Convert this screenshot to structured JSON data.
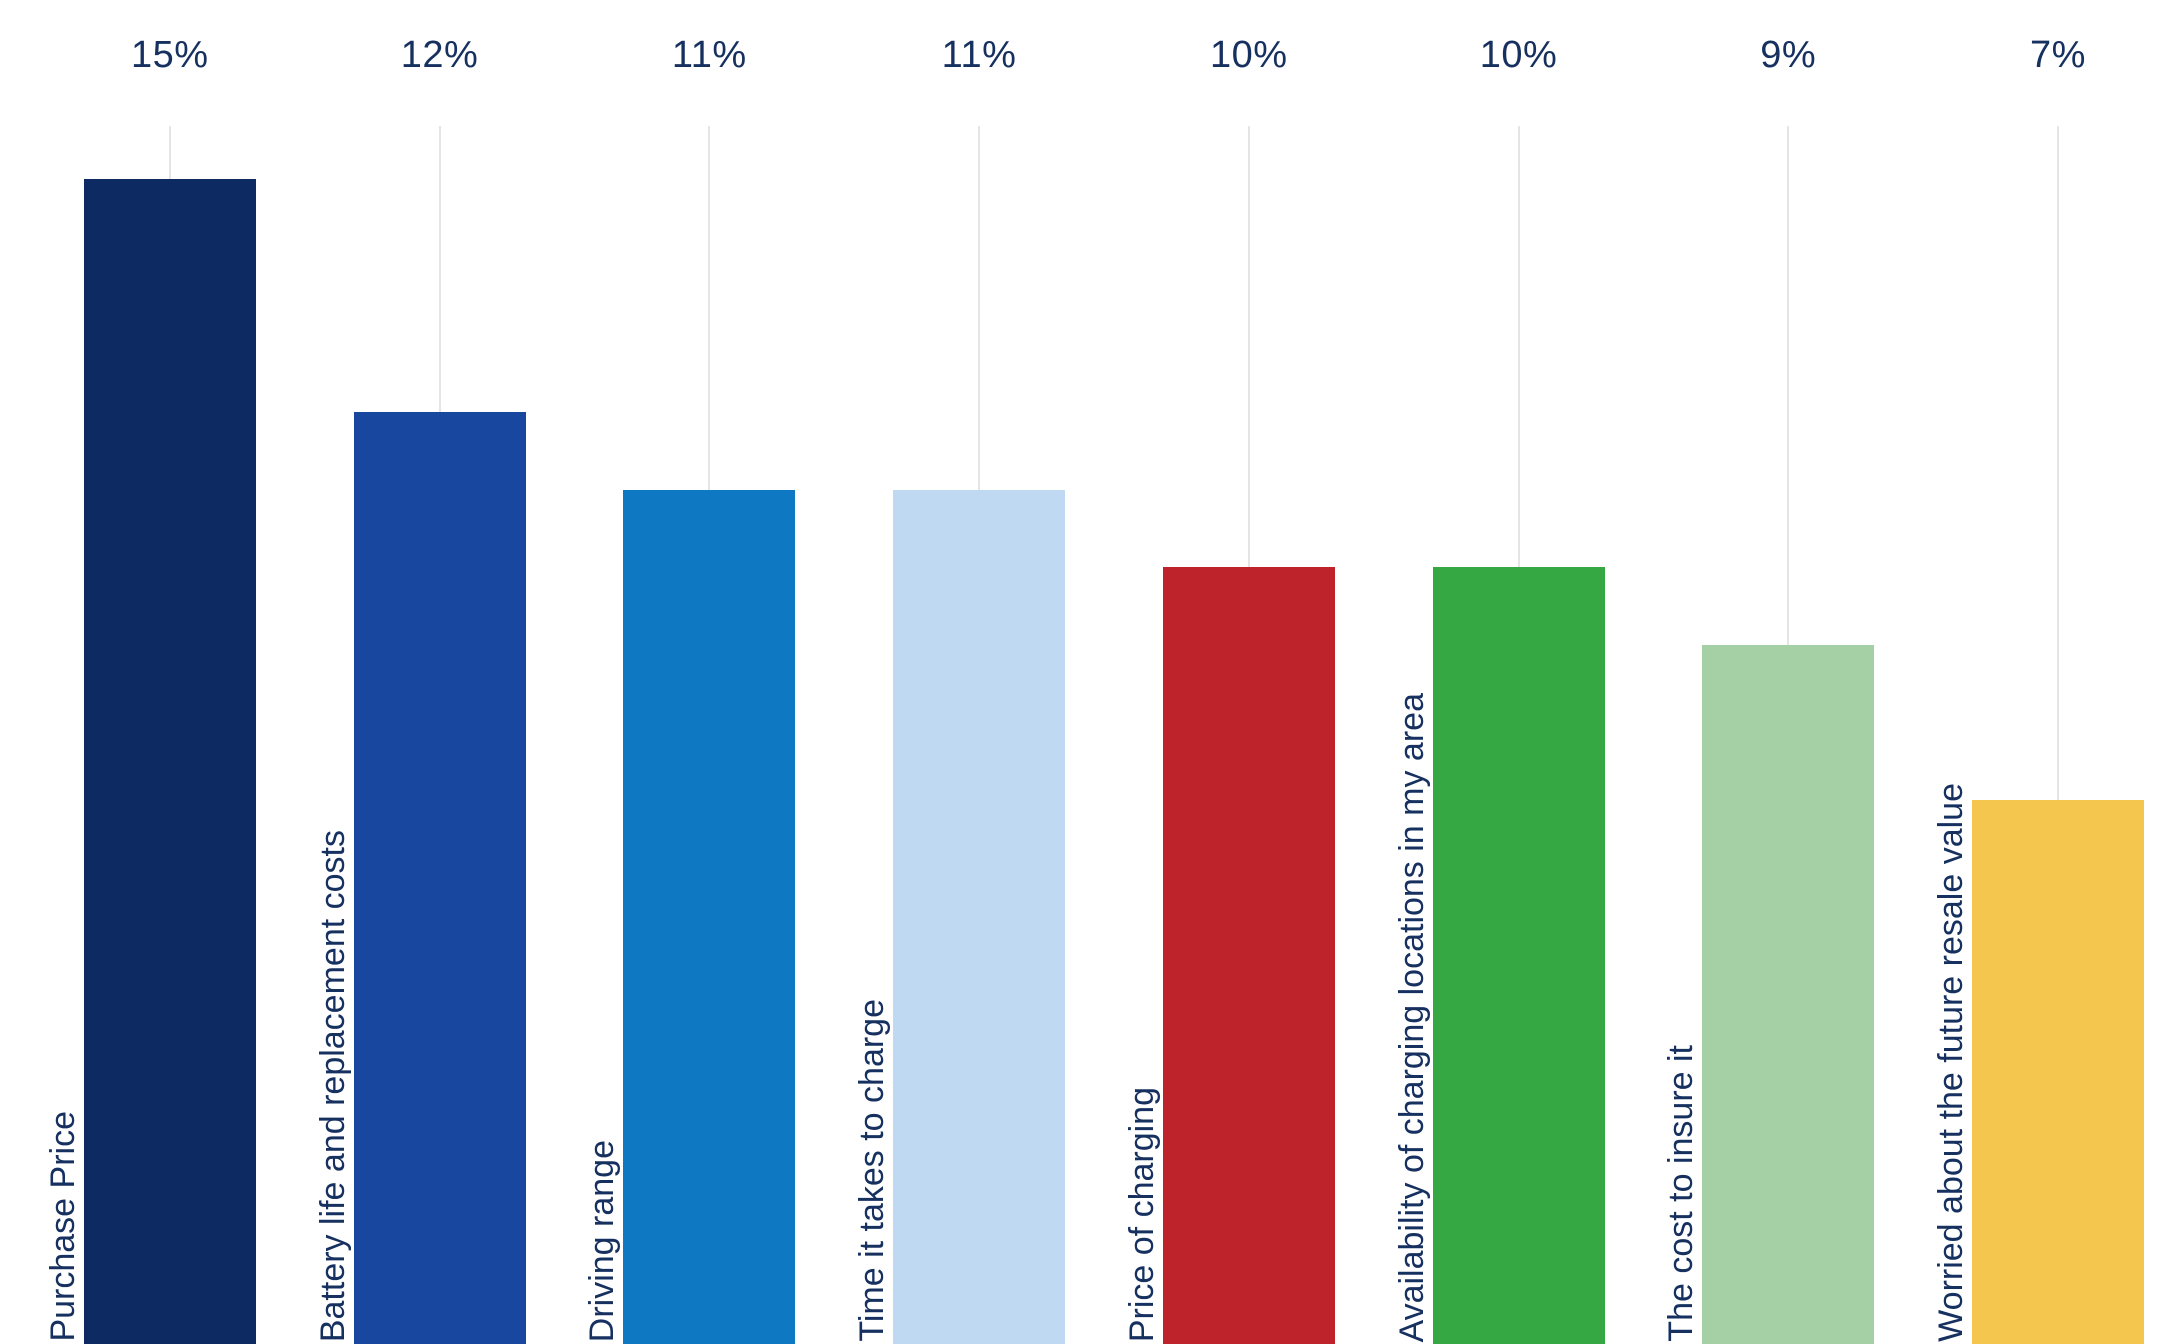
{
  "chart_data": {
    "type": "bar",
    "title": "",
    "xlabel": "",
    "ylabel": "",
    "orientation": "vertical",
    "value_label_position": "top",
    "category_label_position": "rotated-vertical-left-of-bar",
    "grid": "faint vertical line per bar center",
    "ylim": [
      0,
      15.5
    ],
    "categories": [
      "Purchase Price",
      "Battery life and replacement costs",
      "Driving range",
      "Time it takes to charge",
      "Price of charging",
      "Availability of charging locations in my area",
      "The cost to insure it",
      "Worried about the future resale value"
    ],
    "values": [
      15,
      12,
      11,
      11,
      10,
      10,
      9,
      7
    ],
    "value_labels": [
      "15%",
      "12%",
      "11%",
      "11%",
      "10%",
      "10%",
      "9%",
      "7%"
    ],
    "bar_colors": [
      "#0d2a63",
      "#17479e",
      "#0e79c2",
      "#bfd9f2",
      "#be222b",
      "#35a843",
      "#a5cfa5",
      "#f4c64d"
    ],
    "text_color": "#16305f",
    "gridline_color": "#e7e5e3",
    "background_color": "#ffffff"
  }
}
